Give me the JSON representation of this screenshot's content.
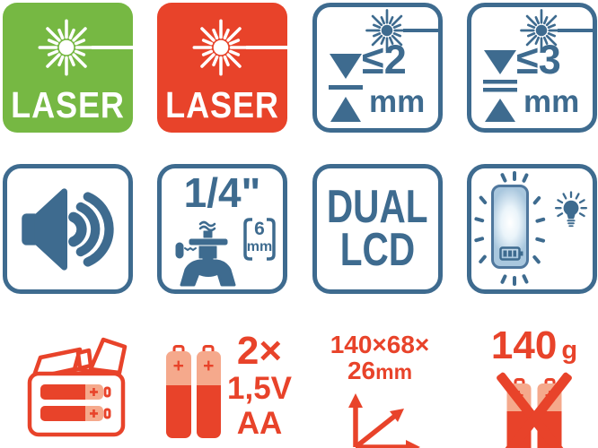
{
  "colors": {
    "green": "#76B843",
    "red": "#E8432A",
    "salmon": "#F5A98C",
    "blue": "#3E6B8F"
  },
  "tiles": {
    "laser_green": {
      "label": "LASER"
    },
    "laser_red": {
      "label": "LASER"
    },
    "accuracy_2mm": {
      "value": "≤2",
      "unit": "mm"
    },
    "accuracy_3mm": {
      "value": "≤3",
      "unit": "mm"
    },
    "tripod_thread": {
      "size": "1/4\"",
      "hole_value": "6",
      "hole_unit": "mm"
    },
    "dual_lcd": {
      "line1": "DUAL",
      "line2": "LCD"
    }
  },
  "specs": {
    "batteries": {
      "count": "2×",
      "voltage": "1,5V",
      "type": "AA"
    },
    "dimensions": {
      "line1": "140×68×",
      "value": "26",
      "unit": "mm"
    },
    "weight": {
      "value": "140",
      "unit": "g"
    }
  },
  "symbols": {
    "battery_plus": "+"
  },
  "icons": {
    "laser_beam": "laser-starburst-icon",
    "sound": "speaker-sound-waves-icon",
    "tripod": "tripod-mount-icon",
    "accuracy": "deviation-triangles-icon",
    "backlight": "backlit-display-icon",
    "bulb": "light-bulb-icon",
    "packaging": "box-with-batteries-icon",
    "battery": "aa-battery-icon",
    "dimensions_arrows": "xyz-arrows-icon",
    "no_batteries": "crossed-out-batteries-icon"
  }
}
